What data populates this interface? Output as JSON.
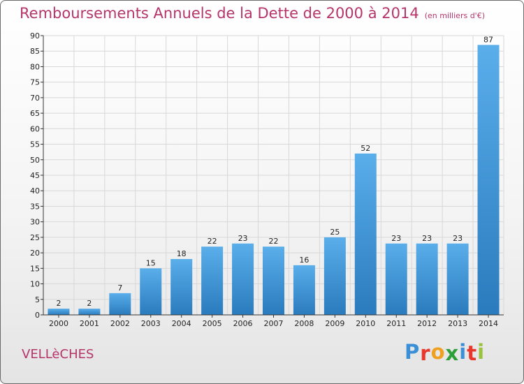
{
  "header": {
    "title": "Remboursements Annuels de la Dette de 2000 à 2014",
    "unit": "(en milliers d'€)"
  },
  "footer": {
    "commune": "VELLèCHES",
    "logo_letters": [
      "P",
      "r",
      "o",
      "x",
      "i",
      "t",
      "i"
    ],
    "logo_colors": [
      "#3a8fd6",
      "#e8372c",
      "#f0a020",
      "#2d9f3a",
      "#3a8fd6",
      "#e8372c",
      "#9ac23c"
    ]
  },
  "colors": {
    "bar_light": "#5aaeea",
    "bar_dark": "#2a7bbd",
    "grid": "#d8d8d8",
    "axis": "#333333",
    "text": "#222222"
  },
  "chart_data": {
    "type": "bar",
    "title": "Remboursements Annuels de la Dette de 2000 à 2014",
    "categories": [
      "2000",
      "2001",
      "2002",
      "2003",
      "2004",
      "2005",
      "2006",
      "2007",
      "2008",
      "2009",
      "2010",
      "2011",
      "2012",
      "2013",
      "2014"
    ],
    "values": [
      2,
      2,
      7,
      15,
      18,
      22,
      23,
      22,
      16,
      25,
      52,
      23,
      23,
      23,
      87
    ],
    "yticks": [
      0,
      5,
      10,
      15,
      20,
      25,
      30,
      35,
      40,
      45,
      50,
      55,
      60,
      65,
      70,
      75,
      80,
      85,
      90
    ],
    "ylim": [
      0,
      90
    ],
    "grid": true
  }
}
